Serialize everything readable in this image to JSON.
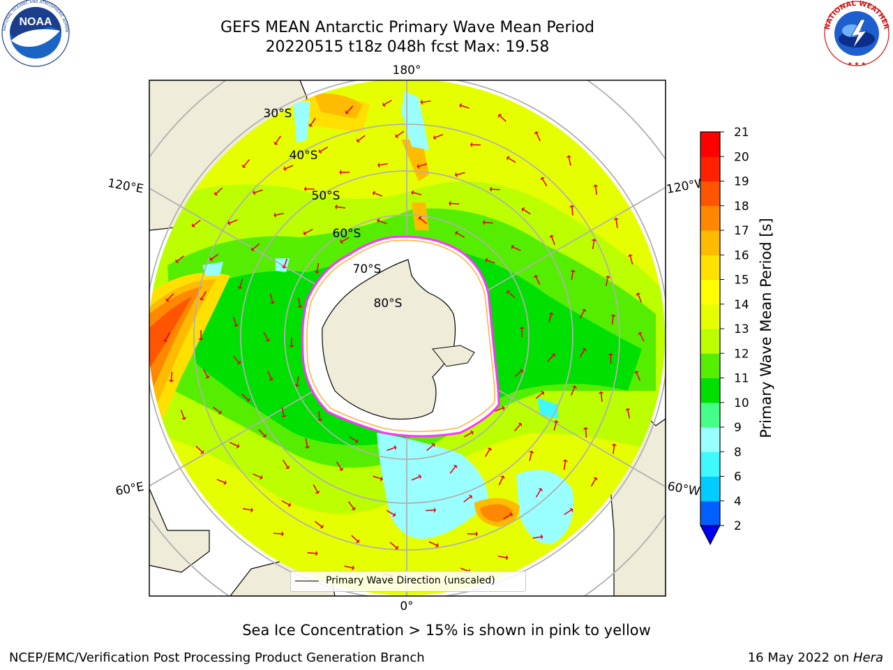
{
  "title": {
    "line1": "GEFS MEAN Antarctic Primary Wave Mean Period",
    "line2": "20220515 t18z 048h fcst   Max: 19.58"
  },
  "logos": {
    "left": "NOAA",
    "left_ring_text": "NATIONAL OCEANIC AND ATMOSPHERIC ADMINISTRATION · U.S. DEPARTMENT OF COMMERCE",
    "right_ring_text": "NATIONAL WEATHER SERVICE"
  },
  "map": {
    "longitude_labels": {
      "top": "180°",
      "bottom": "0°",
      "upper_left": "120°E",
      "upper_right": "120°W",
      "lower_left": "60°E",
      "lower_right": "60°W"
    },
    "latitude_labels": [
      "30°S",
      "40°S",
      "50°S",
      "60°S",
      "70°S",
      "80°S"
    ],
    "legend": "Primary Wave Direction (unscaled)",
    "colors": {
      "land": "#efecd9",
      "sea_ice": "#ffffff",
      "ice_edge": "#ff33ff",
      "ice_edge_inner": "#ffb347",
      "graticule": "#b0b0b0",
      "arrow": "#e8001c"
    }
  },
  "colorbar": {
    "label": "Primary Wave Mean Period [s]",
    "ticks": [
      "2",
      "4",
      "6",
      "8",
      "9",
      "10",
      "11",
      "12",
      "13",
      "14",
      "15",
      "16",
      "17",
      "18",
      "19",
      "20",
      "21"
    ],
    "colors": [
      "#0060ff",
      "#00ccff",
      "#3ff9ff",
      "#99ffff",
      "#44ff88",
      "#00e000",
      "#55ee00",
      "#bbff00",
      "#e6ff00",
      "#ffff00",
      "#ffe000",
      "#ffbb00",
      "#ff8800",
      "#ff5500",
      "#ff2200",
      "#ff0000"
    ],
    "extend_color": "#0000ee"
  },
  "caption": "Sea Ice Concentration > 15% is shown in pink to yellow",
  "footer": {
    "left": "NCEP/EMC/Verification Post Processing Product Generation Branch",
    "date": "16 May 2022 on ",
    "machine": "Hera"
  }
}
